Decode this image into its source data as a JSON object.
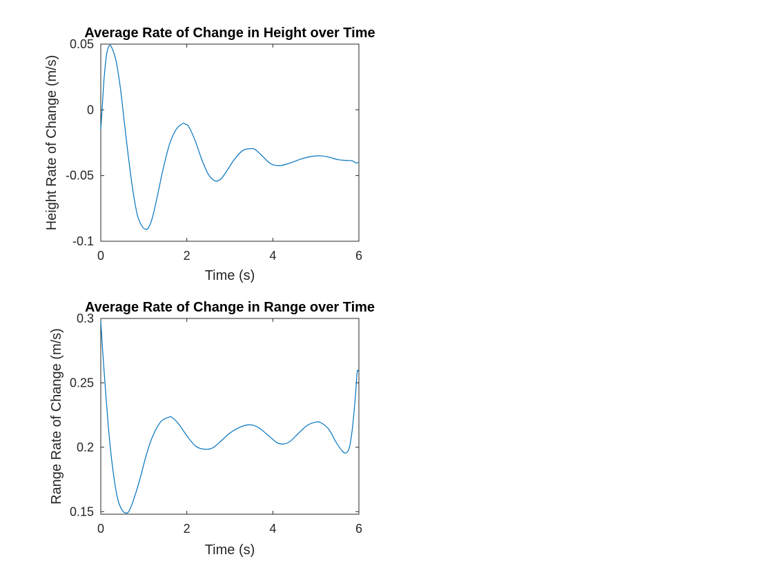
{
  "chart_data": [
    {
      "type": "line",
      "title": "Average Rate of Change in Height over Time",
      "xlabel": "Time (s)",
      "ylabel": "Height Rate of Change (m/s)",
      "xlim": [
        0,
        6
      ],
      "ylim": [
        -0.1,
        0.05
      ],
      "xticks": [
        0,
        2,
        4,
        6
      ],
      "xtick_labels": [
        "0",
        "2",
        "4",
        "6"
      ],
      "yticks": [
        -0.1,
        -0.05,
        0,
        0.05
      ],
      "ytick_labels": [
        "-0.1",
        "-0.05",
        "0",
        "0.05"
      ],
      "grid": false,
      "series": [
        {
          "color": "#0072BD",
          "x": [
            0,
            0.03,
            0.08,
            0.14,
            0.2,
            0.26,
            0.35,
            0.45,
            0.55,
            0.65,
            0.75,
            0.85,
            0.95,
            1.05,
            1.12,
            1.2,
            1.3,
            1.45,
            1.6,
            1.75,
            1.9,
            1.97,
            2.05,
            2.2,
            2.35,
            2.5,
            2.65,
            2.78,
            2.9,
            3.1,
            3.3,
            3.5,
            3.6,
            3.75,
            3.95,
            4.15,
            4.4,
            4.65,
            4.9,
            5.1,
            5.3,
            5.5,
            5.7,
            5.85,
            5.92,
            6.0
          ],
          "y": [
            -0.015,
            0.0,
            0.025,
            0.043,
            0.049,
            0.047,
            0.038,
            0.018,
            -0.01,
            -0.038,
            -0.062,
            -0.08,
            -0.088,
            -0.091,
            -0.089,
            -0.082,
            -0.068,
            -0.045,
            -0.026,
            -0.015,
            -0.0105,
            -0.011,
            -0.013,
            -0.024,
            -0.038,
            -0.049,
            -0.054,
            -0.053,
            -0.048,
            -0.038,
            -0.031,
            -0.0295,
            -0.0305,
            -0.035,
            -0.041,
            -0.0425,
            -0.0405,
            -0.0375,
            -0.0355,
            -0.035,
            -0.036,
            -0.0378,
            -0.0385,
            -0.0388,
            -0.0403,
            -0.04
          ]
        }
      ]
    },
    {
      "type": "line",
      "title": "Average Rate of Change in Range over Time",
      "xlabel": "Time (s)",
      "ylabel": "Range Rate of Change (m/s)",
      "xlim": [
        0,
        6
      ],
      "ylim": [
        0.148,
        0.3
      ],
      "xticks": [
        0,
        2,
        4,
        6
      ],
      "xtick_labels": [
        "0",
        "2",
        "4",
        "6"
      ],
      "yticks": [
        0.15,
        0.2,
        0.25,
        0.3
      ],
      "ytick_labels": [
        "0.15",
        "0.2",
        "0.25",
        "0.3"
      ],
      "grid": false,
      "series": [
        {
          "color": "#0072BD",
          "x": [
            0,
            0.05,
            0.12,
            0.2,
            0.3,
            0.4,
            0.5,
            0.58,
            0.65,
            0.75,
            0.9,
            1.05,
            1.2,
            1.4,
            1.6,
            1.65,
            1.8,
            2.0,
            2.2,
            2.4,
            2.6,
            2.8,
            3.0,
            3.2,
            3.4,
            3.55,
            3.7,
            3.9,
            4.1,
            4.25,
            4.4,
            4.6,
            4.8,
            5.0,
            5.12,
            5.3,
            5.45,
            5.6,
            5.7,
            5.78,
            5.85,
            5.92,
            5.96,
            6.0
          ],
          "y": [
            0.298,
            0.272,
            0.24,
            0.207,
            0.178,
            0.159,
            0.151,
            0.149,
            0.15,
            0.158,
            0.174,
            0.193,
            0.208,
            0.22,
            0.2235,
            0.2233,
            0.2185,
            0.209,
            0.201,
            0.1985,
            0.1995,
            0.205,
            0.211,
            0.215,
            0.2173,
            0.217,
            0.2145,
            0.209,
            0.2035,
            0.2025,
            0.2045,
            0.211,
            0.217,
            0.2195,
            0.219,
            0.214,
            0.205,
            0.1975,
            0.1955,
            0.2,
            0.215,
            0.24,
            0.2585,
            0.2585
          ]
        }
      ]
    }
  ]
}
